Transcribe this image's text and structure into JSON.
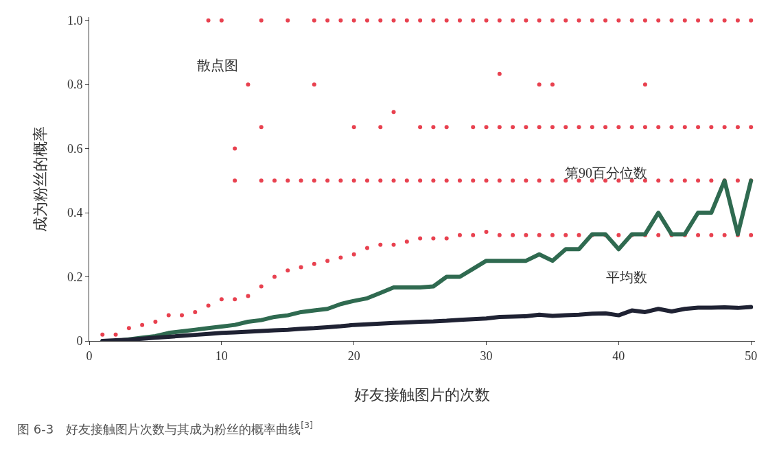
{
  "chart_data": {
    "type": "line",
    "xlabel": "好友接触图片的次数",
    "ylabel": "成为粉丝的概率",
    "annotations": [
      "图 6-3　好友接触图片次数与其成为粉丝的概率曲线$^{[3]}$"
    ],
    "xlim": [
      0,
      50.3
    ],
    "xticks": [
      0,
      10,
      20,
      30,
      40,
      50
    ],
    "ylim": [
      0,
      1.01
    ],
    "yticks": [
      0,
      {
        "value": 0.2,
        "label": "0.2"
      },
      {
        "value": 0.4,
        "label": "0.4"
      },
      {
        "value": 0.6,
        "label": "0.6"
      },
      {
        "value": 0.8,
        "label": "0.8"
      },
      {
        "value": 1,
        "label": "1.0"
      }
    ],
    "grid": false,
    "legend": false,
    "series": [
      {
        "name": "散点图",
        "type": "scatter",
        "color": "#e8414f",
        "marker": "circle",
        "x": [
          9,
          10,
          13,
          15,
          17,
          18,
          19,
          20,
          21,
          22,
          23,
          24,
          25,
          26,
          27,
          28,
          29,
          30,
          31,
          32,
          33,
          34,
          35,
          36,
          37,
          38,
          39,
          40,
          41,
          42,
          43,
          44,
          45,
          46,
          47,
          48,
          49,
          50,
          12,
          17,
          34,
          35,
          42,
          13,
          20,
          22,
          25,
          26,
          27,
          29,
          30,
          31,
          32,
          33,
          34,
          35,
          36,
          37,
          38,
          39,
          40,
          41,
          42,
          43,
          44,
          45,
          46,
          47,
          48,
          49,
          50,
          11,
          13,
          14,
          15,
          16,
          17,
          18,
          19,
          20,
          21,
          22,
          23,
          24,
          25,
          26,
          27,
          28,
          29,
          30,
          31,
          32,
          33,
          34,
          35,
          36,
          37,
          38,
          39,
          40,
          41,
          42,
          43,
          44,
          45,
          46,
          47,
          48,
          49,
          50,
          31,
          23,
          11,
          1,
          2,
          3,
          4,
          5,
          6,
          7,
          8,
          9,
          10,
          11,
          12,
          13,
          14,
          15,
          16,
          17,
          18,
          19,
          20,
          21,
          22,
          23,
          24,
          25,
          26,
          27,
          28,
          29,
          30,
          31,
          32,
          33,
          34,
          35,
          36,
          37,
          38,
          39,
          40,
          41,
          42,
          43,
          44,
          45,
          46,
          47,
          48,
          49,
          50
        ],
        "values": [
          1,
          1,
          1,
          1,
          1,
          1,
          1,
          1,
          1,
          1,
          1,
          1,
          1,
          1,
          1,
          1,
          1,
          1,
          1,
          1,
          1,
          1,
          1,
          1,
          1,
          1,
          1,
          1,
          1,
          1,
          1,
          1,
          1,
          1,
          1,
          1,
          1,
          1,
          0.8,
          0.8,
          0.8,
          0.8,
          0.8,
          0.667,
          0.667,
          0.667,
          0.667,
          0.667,
          0.667,
          0.667,
          0.667,
          0.667,
          0.667,
          0.667,
          0.667,
          0.667,
          0.667,
          0.667,
          0.667,
          0.667,
          0.667,
          0.667,
          0.667,
          0.667,
          0.667,
          0.667,
          0.667,
          0.667,
          0.667,
          0.667,
          0.667,
          0.5,
          0.5,
          0.5,
          0.5,
          0.5,
          0.5,
          0.5,
          0.5,
          0.5,
          0.5,
          0.5,
          0.5,
          0.5,
          0.5,
          0.5,
          0.5,
          0.5,
          0.5,
          0.5,
          0.5,
          0.5,
          0.5,
          0.5,
          0.5,
          0.5,
          0.5,
          0.5,
          0.5,
          0.5,
          0.5,
          0.5,
          0.5,
          0.5,
          0.5,
          0.5,
          0.5,
          0.5,
          0.5,
          0.5,
          0.833,
          0.714,
          0.6,
          0.02,
          0.02,
          0.04,
          0.05,
          0.06,
          0.08,
          0.08,
          0.09,
          0.11,
          0.13,
          0.13,
          0.14,
          0.17,
          0.2,
          0.22,
          0.23,
          0.24,
          0.25,
          0.26,
          0.27,
          0.29,
          0.3,
          0.3,
          0.31,
          0.32,
          0.32,
          0.32,
          0.33,
          0.33,
          0.34,
          0.33,
          0.33,
          0.33,
          0.33,
          0.33,
          0.33,
          0.33,
          0.33,
          0.33,
          0.33,
          0.33,
          0.33,
          0.33,
          0.33,
          0.33,
          0.33,
          0.33,
          0.33,
          0.33,
          0.33
        ]
      },
      {
        "name": "第90百分位数",
        "color": "#2f6a50",
        "marker": "none",
        "line_style": "solid",
        "x": [
          1,
          2,
          3,
          4,
          5,
          6,
          7,
          8,
          9,
          10,
          11,
          12,
          13,
          14,
          15,
          16,
          17,
          18,
          19,
          20,
          21,
          22,
          23,
          24,
          25,
          26,
          27,
          28,
          29,
          30,
          31,
          32,
          33,
          34,
          35,
          36,
          37,
          38,
          39,
          40,
          41,
          42,
          43,
          44,
          45,
          46,
          47,
          48,
          49,
          50
        ],
        "values": [
          0,
          0,
          0.005,
          0.01,
          0.015,
          0.025,
          0.03,
          0.035,
          0.04,
          0.045,
          0.05,
          0.06,
          0.065,
          0.075,
          0.08,
          0.09,
          0.095,
          0.1,
          0.115,
          0.125,
          0.133,
          0.15,
          0.167,
          0.167,
          0.167,
          0.17,
          0.2,
          0.2,
          0.225,
          0.25,
          0.25,
          0.25,
          0.25,
          0.27,
          0.25,
          0.286,
          0.286,
          0.333,
          0.333,
          0.286,
          0.333,
          0.333,
          0.4,
          0.333,
          0.333,
          0.4,
          0.4,
          0.5,
          0.333,
          0.5
        ]
      },
      {
        "name": "平均数",
        "color": "#1f2233",
        "marker": "none",
        "line_style": "solid",
        "x": [
          1,
          2,
          3,
          4,
          5,
          6,
          7,
          8,
          9,
          10,
          11,
          12,
          13,
          14,
          15,
          16,
          17,
          18,
          19,
          20,
          21,
          22,
          23,
          24,
          25,
          26,
          27,
          28,
          29,
          30,
          31,
          32,
          33,
          34,
          35,
          36,
          37,
          38,
          39,
          40,
          41,
          42,
          43,
          44,
          45,
          46,
          47,
          48,
          49,
          50
        ],
        "values": [
          0,
          0.002,
          0.004,
          0.007,
          0.01,
          0.013,
          0.016,
          0.019,
          0.022,
          0.025,
          0.027,
          0.029,
          0.031,
          0.033,
          0.035,
          0.038,
          0.04,
          0.043,
          0.046,
          0.05,
          0.052,
          0.054,
          0.056,
          0.058,
          0.06,
          0.061,
          0.063,
          0.066,
          0.068,
          0.07,
          0.075,
          0.076,
          0.077,
          0.082,
          0.078,
          0.08,
          0.082,
          0.085,
          0.086,
          0.08,
          0.095,
          0.09,
          0.1,
          0.092,
          0.1,
          0.104,
          0.104,
          0.105,
          0.103,
          0.106
        ]
      }
    ]
  }
}
